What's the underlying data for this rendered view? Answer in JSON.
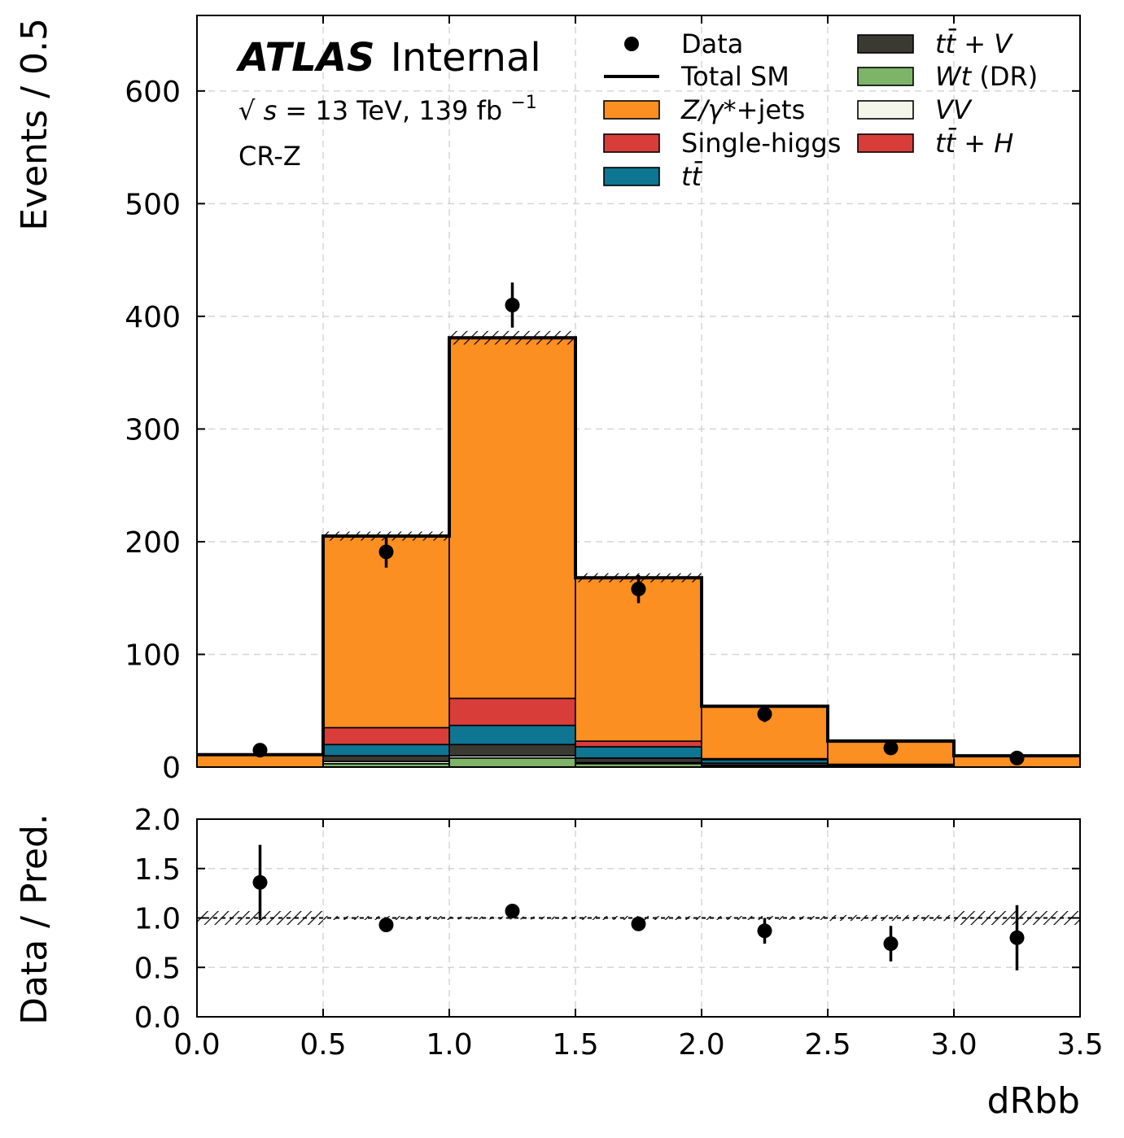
{
  "chart_data": [
    {
      "type": "stacked-histogram",
      "panel": "main",
      "ylabel": "Events / 0.5",
      "xlim": [
        0,
        3.5
      ],
      "ylim": [
        0,
        667
      ],
      "yticks": [
        0,
        100,
        200,
        300,
        400,
        500,
        600
      ],
      "ytick_labels": [
        "0",
        "100",
        "200",
        "300",
        "400",
        "500",
        "600"
      ],
      "grid": true,
      "bin_edges": [
        0,
        0.5,
        1.0,
        1.5,
        2.0,
        2.5,
        3.0,
        3.5
      ],
      "series": [
        {
          "name": "Wt (DR)",
          "color": "#7db468",
          "values": [
            0,
            3,
            8,
            3,
            1,
            0.5,
            0
          ]
        },
        {
          "name": "VV",
          "color": "#f3f6e8",
          "values": [
            0,
            2,
            2,
            1,
            0.5,
            0.3,
            0
          ]
        },
        {
          "name": "tt̄ + V",
          "color": "#3a3a33",
          "values": [
            0,
            5,
            10,
            4,
            2,
            0.5,
            0
          ]
        },
        {
          "name": "tt̄",
          "color": "#0e7592",
          "values": [
            0,
            10,
            17,
            10,
            3,
            1,
            0
          ]
        },
        {
          "name": "Single-higgs",
          "color": "#d83d3a",
          "values": [
            0,
            15,
            24,
            5,
            1,
            0.2,
            0
          ]
        },
        {
          "name": "tt̄ + H",
          "color": "#d83d3a",
          "values": [
            0,
            0,
            0,
            0,
            0,
            0,
            0
          ]
        },
        {
          "name": "Z/γ*+jets",
          "color": "#fc8f22",
          "values": [
            11,
            170,
            320,
            145,
            46,
            21.5,
            10
          ]
        }
      ],
      "total_sm": [
        11,
        205,
        381,
        168,
        54,
        23,
        10
      ],
      "total_sm_unc": [
        0.5,
        4,
        6,
        4,
        1,
        0.5,
        0.5
      ],
      "data": {
        "name": "Data",
        "x": [
          0.25,
          0.75,
          1.25,
          1.75,
          2.25,
          2.75,
          3.25
        ],
        "y": [
          15,
          191,
          410,
          158,
          47,
          17,
          8
        ],
        "err": [
          4,
          14,
          20,
          12.5,
          7,
          4,
          3
        ]
      },
      "legend": {
        "placement": "top-right",
        "entries": [
          "Data",
          "Total SM",
          "Z/γ*+jets",
          "Single-higgs",
          "tt̄",
          "tt̄ + V",
          "Wt (DR)",
          "VV",
          "tt̄ + H"
        ]
      },
      "annotations": {
        "experiment": "ATLAS",
        "status": "Internal",
        "energy_prefix": "√",
        "energy_s": "s",
        "energy_text": " = 13 TeV, 139 fb",
        "energy_exp": "−1",
        "region": "CR-Z"
      }
    },
    {
      "type": "scatter",
      "panel": "ratio",
      "ylabel": "Data / Pred.",
      "xlabel": "dRbb",
      "xlim": [
        0,
        3.5
      ],
      "ylim": [
        0,
        2
      ],
      "xticks": [
        0,
        0.5,
        1.0,
        1.5,
        2.0,
        2.5,
        3.0,
        3.5
      ],
      "xtick_labels": [
        "0.0",
        "0.5",
        "1.0",
        "1.5",
        "2.0",
        "2.5",
        "3.0",
        "3.5"
      ],
      "yticks": [
        0,
        0.5,
        1.0,
        1.5,
        2.0
      ],
      "ytick_labels": [
        "0.0",
        "0.5",
        "1.0",
        "1.5",
        "2.0"
      ],
      "grid": true,
      "x": [
        0.25,
        0.75,
        1.25,
        1.75,
        2.25,
        2.75,
        3.25
      ],
      "y": [
        1.36,
        0.93,
        1.07,
        0.94,
        0.87,
        0.74,
        0.8
      ],
      "err": [
        0.38,
        0.07,
        0.05,
        0.07,
        0.13,
        0.18,
        0.33
      ],
      "band_unc": [
        0.07,
        0.02,
        0.015,
        0.02,
        0.02,
        0.03,
        0.07
      ]
    }
  ]
}
